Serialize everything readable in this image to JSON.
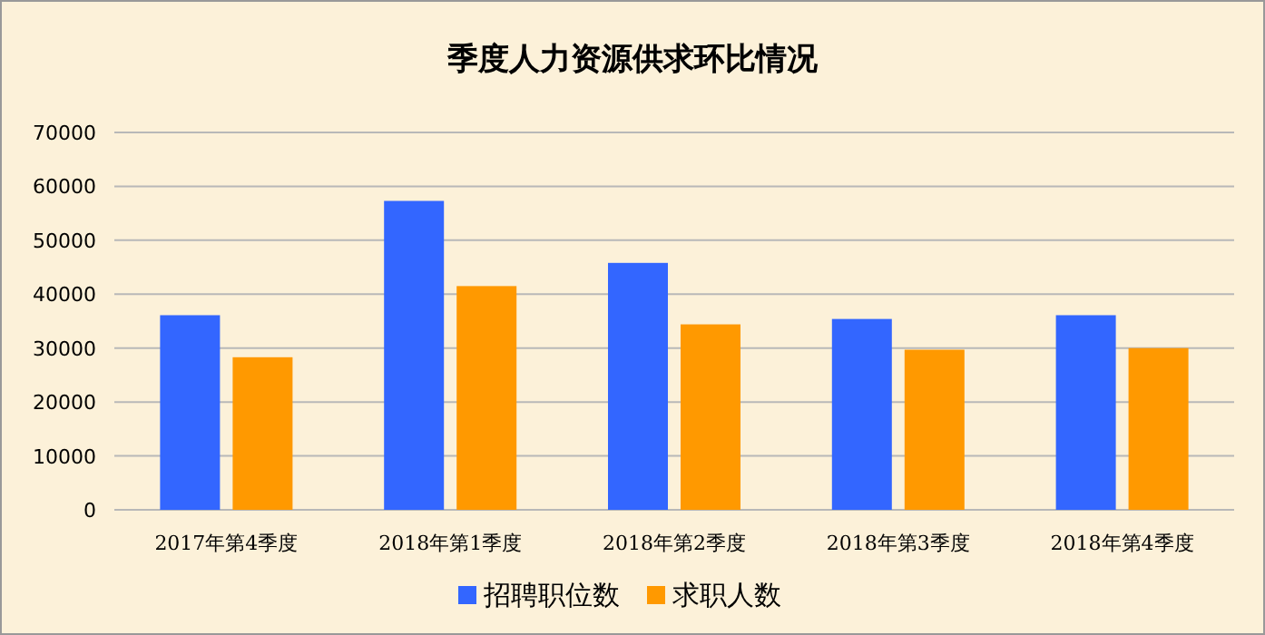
{
  "chart_data": {
    "type": "bar",
    "title": "季度人力资源供求环比情况",
    "categories": [
      "2017年第4季度",
      "2018年第1季度",
      "2018年第2季度",
      "2018年第3季度",
      "2018年第4季度"
    ],
    "series": [
      {
        "name": "招聘职位数",
        "color": "#3366ff",
        "values": [
          36100,
          57300,
          45800,
          35400,
          36100
        ]
      },
      {
        "name": "求职人数",
        "color": "#ff9900",
        "values": [
          28300,
          41500,
          34400,
          29700,
          30000
        ]
      }
    ],
    "ylim": [
      0,
      70000
    ],
    "yticks": [
      0,
      10000,
      20000,
      30000,
      40000,
      50000,
      60000,
      70000
    ],
    "grid": "y",
    "legend": "bottom"
  }
}
